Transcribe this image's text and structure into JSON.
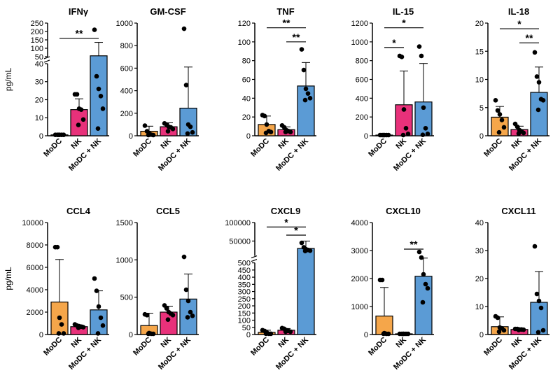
{
  "colors": {
    "MoDC": "#f5a64a",
    "NK": "#e8317a",
    "MoDC + NK": "#5b9bd5",
    "stroke": "#000000"
  },
  "chart_data": [
    {
      "type": "bar",
      "title": "IFNγ",
      "ylabel": "pg/mL",
      "categories": [
        "MoDC",
        "NK",
        "MoDC + NK"
      ],
      "axis": {
        "type": "broken",
        "lower": {
          "range": [
            0,
            40
          ],
          "ticks": [
            0,
            10,
            20,
            30,
            40
          ]
        },
        "upper": {
          "range": [
            50,
            250
          ],
          "ticks": [
            50,
            100,
            150,
            200,
            250
          ]
        }
      },
      "bars": [
        {
          "mean": 0.5,
          "sd": 0.3,
          "points": [
            0.5,
            0.5,
            0.5,
            0.5,
            0.5,
            0.5
          ]
        },
        {
          "mean": 14.5,
          "sd": 6,
          "points": [
            23,
            23,
            15,
            14.5,
            9,
            6
          ]
        },
        {
          "mean": 55,
          "sd": 80,
          "points": [
            210,
            33,
            26,
            22,
            15,
            4
          ]
        }
      ],
      "significance": [
        {
          "from": 0,
          "to": 2,
          "label": "**",
          "y": 160
        }
      ]
    },
    {
      "type": "bar",
      "title": "GM-CSF",
      "ylabel": "",
      "categories": [
        "MoDC",
        "NK",
        "MoDC + NK"
      ],
      "axis": {
        "range": [
          0,
          1000
        ],
        "ticks": [
          0,
          200,
          400,
          600,
          800,
          1000
        ]
      },
      "bars": [
        {
          "mean": 40,
          "sd": 45,
          "points": [
            90,
            40,
            20,
            10,
            5,
            5
          ]
        },
        {
          "mean": 80,
          "sd": 35,
          "points": [
            110,
            100,
            80,
            75,
            60,
            40
          ]
        },
        {
          "mean": 245,
          "sd": 365,
          "points": [
            950,
            450,
            100,
            80,
            30,
            20
          ]
        }
      ],
      "significance": []
    },
    {
      "type": "bar",
      "title": "TNF",
      "ylabel": "",
      "categories": [
        "MoDC",
        "NK",
        "MoDC + NK"
      ],
      "axis": {
        "range": [
          0,
          120
        ],
        "ticks": [
          0,
          20,
          40,
          60,
          80,
          100,
          120
        ]
      },
      "bars": [
        {
          "mean": 12,
          "sd": 9,
          "points": [
            22,
            21,
            12,
            5,
            4,
            3
          ]
        },
        {
          "mean": 6.5,
          "sd": 3,
          "points": [
            11,
            9,
            6,
            5,
            4,
            4
          ]
        },
        {
          "mean": 53,
          "sd": 25,
          "points": [
            92,
            70,
            50,
            45,
            40,
            38
          ]
        }
      ],
      "significance": [
        {
          "from": 0,
          "to": 2,
          "label": "**",
          "y": 115
        },
        {
          "from": 1,
          "to": 2,
          "label": "**",
          "y": 100
        }
      ]
    },
    {
      "type": "bar",
      "title": "IL-15",
      "ylabel": "",
      "categories": [
        "MoDC",
        "NK",
        "MoDC + NK"
      ],
      "axis": {
        "range": [
          0,
          1200
        ],
        "ticks": [
          0,
          200,
          400,
          600,
          800,
          1000,
          1200
        ]
      },
      "bars": [
        {
          "mean": 5,
          "sd": 3,
          "points": [
            5,
            5,
            5,
            5,
            5,
            5
          ]
        },
        {
          "mean": 330,
          "sd": 360,
          "points": [
            850,
            840,
            280,
            80,
            20,
            5
          ]
        },
        {
          "mean": 360,
          "sd": 410,
          "points": [
            950,
            850,
            300,
            80,
            20,
            10
          ]
        }
      ],
      "significance": [
        {
          "from": 0,
          "to": 2,
          "label": "*",
          "y": 1150
        },
        {
          "from": 0,
          "to": 1,
          "label": "*",
          "y": 940
        }
      ]
    },
    {
      "type": "bar",
      "title": "IL-18",
      "ylabel": "",
      "categories": [
        "MoDC",
        "NK",
        "MoDC + NK"
      ],
      "axis": {
        "range": [
          0,
          20
        ],
        "ticks": [
          0,
          5,
          10,
          15,
          20
        ]
      },
      "bars": [
        {
          "mean": 3.3,
          "sd": 1.9,
          "points": [
            6.3,
            4.5,
            3.8,
            2.8,
            1.5,
            0.6
          ]
        },
        {
          "mean": 1.1,
          "sd": 0.6,
          "points": [
            2.1,
            1.6,
            1.0,
            0.8,
            0.5,
            0.4
          ]
        },
        {
          "mean": 7.7,
          "sd": 4.5,
          "points": [
            14.8,
            10.5,
            9.5,
            6.5,
            6.3,
            4.6
          ]
        }
      ],
      "significance": [
        {
          "from": 0,
          "to": 2,
          "label": "*",
          "y": 19.0
        },
        {
          "from": 1,
          "to": 2,
          "label": "**",
          "y": 16.5
        }
      ]
    },
    {
      "type": "bar",
      "title": "CCL4",
      "ylabel": "pg/mL",
      "categories": [
        "MoDC",
        "NK",
        "MoDC + NK"
      ],
      "axis": {
        "range": [
          0,
          10000
        ],
        "ticks": [
          0,
          2000,
          4000,
          6000,
          8000,
          10000
        ]
      },
      "bars": [
        {
          "mean": 2900,
          "sd": 3800,
          "points": [
            7800,
            7800,
            1500,
            900,
            100,
            100
          ]
        },
        {
          "mean": 700,
          "sd": 150,
          "points": [
            900,
            800,
            750,
            700,
            650,
            600
          ]
        },
        {
          "mean": 2200,
          "sd": 1700,
          "points": [
            5000,
            3900,
            2500,
            1500,
            800,
            100
          ]
        }
      ],
      "significance": []
    },
    {
      "type": "bar",
      "title": "CCL5",
      "ylabel": "",
      "categories": [
        "MoDC",
        "NK",
        "MoDC + NK"
      ],
      "axis": {
        "range": [
          0,
          1500
        ],
        "ticks": [
          0,
          500,
          1000,
          1500
        ]
      },
      "bars": [
        {
          "mean": 120,
          "sd": 165,
          "points": [
            270,
            260,
            20,
            10,
            5,
            5
          ]
        },
        {
          "mean": 300,
          "sd": 80,
          "points": [
            390,
            350,
            300,
            280,
            260,
            200
          ]
        },
        {
          "mean": 475,
          "sd": 335,
          "points": [
            1040,
            600,
            450,
            300,
            250,
            230
          ]
        }
      ],
      "significance": []
    },
    {
      "type": "bar",
      "title": "CXCL9",
      "ylabel": "",
      "categories": [
        "MoDC",
        "NK",
        "MoDC + NK"
      ],
      "axis": {
        "type": "broken",
        "lower": {
          "range": [
            0,
            500
          ],
          "ticks": [
            0,
            50,
            100,
            150,
            200,
            250,
            300,
            350,
            400,
            450,
            500
          ]
        },
        "upper": {
          "range": [
            10000,
            100000
          ],
          "ticks": [
            50000,
            100000
          ]
        }
      },
      "bars": [
        {
          "mean": 15,
          "sd": 15,
          "points": [
            30,
            25,
            15,
            5,
            5,
            5
          ]
        },
        {
          "mean": 30,
          "sd": 12,
          "points": [
            45,
            40,
            30,
            25,
            20,
            20
          ]
        },
        {
          "mean": 30000,
          "sd": 20000,
          "points": [
            45000,
            33000,
            28000,
            26000,
            24000,
            23000
          ]
        }
      ],
      "significance": [
        {
          "from": 0,
          "to": 2,
          "label": "*",
          "y": 88000
        },
        {
          "from": 1,
          "to": 2,
          "label": "*",
          "y": 66000
        }
      ]
    },
    {
      "type": "bar",
      "title": "CXCL10",
      "ylabel": "",
      "categories": [
        "MoDC",
        "NK",
        "MoDC + NK"
      ],
      "axis": {
        "range": [
          0,
          4000
        ],
        "ticks": [
          0,
          1000,
          2000,
          3000,
          4000
        ]
      },
      "bars": [
        {
          "mean": 660,
          "sd": 1020,
          "points": [
            1950,
            1950,
            50,
            20,
            10,
            5
          ]
        },
        {
          "mean": 5,
          "sd": 2,
          "points": [
            5,
            5,
            5,
            5,
            5,
            5
          ]
        },
        {
          "mean": 2080,
          "sd": 650,
          "points": [
            2950,
            2750,
            2150,
            1800,
            1650,
            1150
          ]
        }
      ],
      "significance": [
        {
          "from": 1,
          "to": 2,
          "label": "**",
          "y": 3050
        }
      ]
    },
    {
      "type": "bar",
      "title": "CXCL11",
      "ylabel": "",
      "categories": [
        "MoDC",
        "NK",
        "MoDC + NK"
      ],
      "axis": {
        "range": [
          0,
          40
        ],
        "ticks": [
          0,
          10,
          20,
          30,
          40
        ]
      },
      "bars": [
        {
          "mean": 2.8,
          "sd": 3.5,
          "points": [
            6.5,
            6.0,
            2.5,
            2.2,
            1.5,
            1.0
          ]
        },
        {
          "mean": 1.8,
          "sd": 0.3,
          "points": [
            2.0,
            2.0,
            1.8,
            1.8,
            1.7,
            1.6
          ]
        },
        {
          "mean": 11.5,
          "sd": 11,
          "points": [
            31.5,
            14.5,
            12.0,
            9.5,
            1.5,
            0.8
          ]
        }
      ],
      "significance": []
    }
  ]
}
